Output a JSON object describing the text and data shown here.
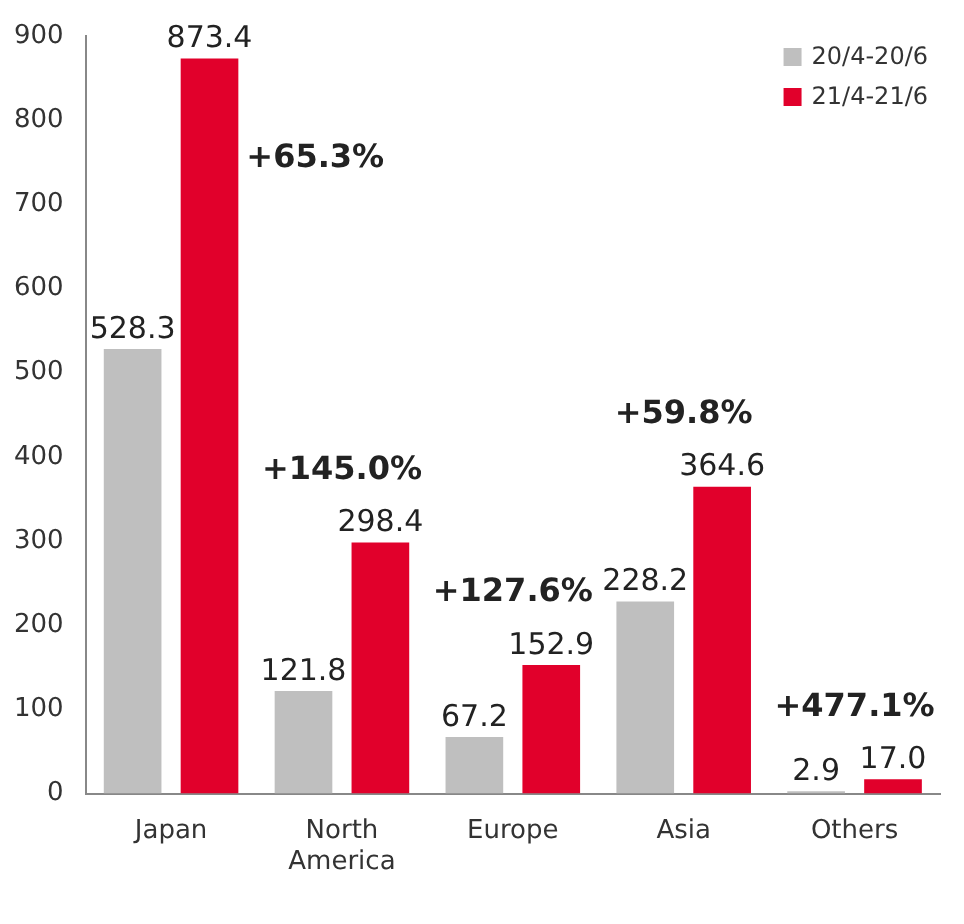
{
  "chart_data": {
    "type": "bar",
    "categories": [
      "Japan",
      "North America",
      "Europe",
      "Asia",
      "Others"
    ],
    "series": [
      {
        "name": "20/4-20/6",
        "color": "#bfbfbf",
        "values": [
          528.3,
          121.8,
          67.2,
          228.2,
          2.9
        ],
        "value_labels": [
          "528.3",
          "121.8",
          "67.2",
          "228.2",
          "2.9"
        ]
      },
      {
        "name": "21/4-21/6",
        "color": "#e1002b",
        "values": [
          873.4,
          298.4,
          152.9,
          364.6,
          17.0
        ],
        "value_labels": [
          "873.4",
          "298.4",
          "152.9",
          "364.6",
          "17.0"
        ]
      }
    ],
    "ylim": [
      0,
      900
    ],
    "yticks": [
      0,
      100,
      200,
      300,
      400,
      500,
      600,
      700,
      800,
      900
    ],
    "grid": false,
    "legend": "top right",
    "annotations": [
      "+65.3%",
      "+145.0%",
      "+127.6%",
      "+59.8%",
      "+477.1%"
    ]
  }
}
